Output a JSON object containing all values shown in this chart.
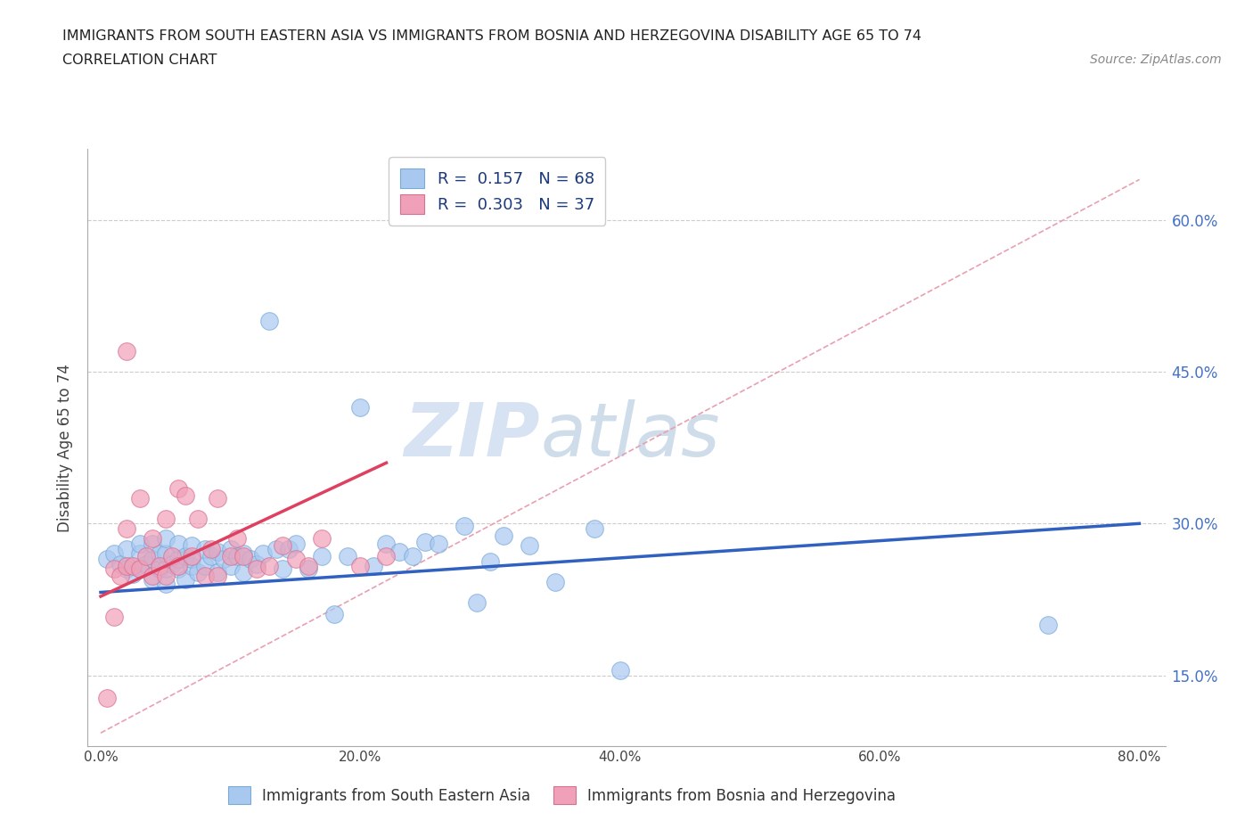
{
  "title_line1": "IMMIGRANTS FROM SOUTH EASTERN ASIA VS IMMIGRANTS FROM BOSNIA AND HERZEGOVINA DISABILITY AGE 65 TO 74",
  "title_line2": "CORRELATION CHART",
  "source_text": "Source: ZipAtlas.com",
  "ylabel": "Disability Age 65 to 74",
  "xlim": [
    -0.01,
    0.82
  ],
  "ylim": [
    0.08,
    0.67
  ],
  "yticks": [
    0.15,
    0.3,
    0.45,
    0.6
  ],
  "ytick_labels": [
    "15.0%",
    "30.0%",
    "45.0%",
    "60.0%"
  ],
  "xticks": [
    0.0,
    0.2,
    0.4,
    0.6,
    0.8
  ],
  "xtick_labels": [
    "0.0%",
    "20.0%",
    "40.0%",
    "60.0%",
    "80.0%"
  ],
  "legend_R1": "0.157",
  "legend_N1": "68",
  "legend_R2": "0.303",
  "legend_N2": "37",
  "color_blue": "#A8C8F0",
  "color_pink": "#F0A0B8",
  "color_blue_line": "#3060C0",
  "color_pink_line": "#E04060",
  "color_dashed": "#E8A0B0",
  "watermark_text": "ZIP",
  "watermark_text2": "atlas",
  "blue_scatter_x": [
    0.005,
    0.01,
    0.015,
    0.02,
    0.02,
    0.025,
    0.03,
    0.03,
    0.03,
    0.035,
    0.04,
    0.04,
    0.04,
    0.045,
    0.045,
    0.05,
    0.05,
    0.05,
    0.05,
    0.055,
    0.06,
    0.06,
    0.06,
    0.065,
    0.065,
    0.07,
    0.07,
    0.07,
    0.075,
    0.08,
    0.08,
    0.085,
    0.09,
    0.09,
    0.095,
    0.1,
    0.1,
    0.105,
    0.11,
    0.11,
    0.115,
    0.12,
    0.125,
    0.13,
    0.135,
    0.14,
    0.145,
    0.15,
    0.16,
    0.17,
    0.18,
    0.19,
    0.2,
    0.21,
    0.22,
    0.23,
    0.24,
    0.25,
    0.26,
    0.28,
    0.29,
    0.3,
    0.31,
    0.33,
    0.35,
    0.38,
    0.4,
    0.73
  ],
  "blue_scatter_y": [
    0.265,
    0.27,
    0.26,
    0.255,
    0.275,
    0.25,
    0.255,
    0.27,
    0.28,
    0.26,
    0.245,
    0.265,
    0.28,
    0.255,
    0.27,
    0.24,
    0.255,
    0.27,
    0.285,
    0.26,
    0.255,
    0.265,
    0.28,
    0.245,
    0.268,
    0.258,
    0.265,
    0.278,
    0.252,
    0.258,
    0.275,
    0.268,
    0.252,
    0.272,
    0.265,
    0.258,
    0.275,
    0.268,
    0.252,
    0.27,
    0.265,
    0.26,
    0.27,
    0.5,
    0.275,
    0.255,
    0.275,
    0.28,
    0.255,
    0.268,
    0.21,
    0.268,
    0.415,
    0.258,
    0.28,
    0.272,
    0.268,
    0.282,
    0.28,
    0.298,
    0.222,
    0.262,
    0.288,
    0.278,
    0.242,
    0.295,
    0.155,
    0.2
  ],
  "pink_scatter_x": [
    0.005,
    0.01,
    0.01,
    0.015,
    0.02,
    0.02,
    0.02,
    0.025,
    0.03,
    0.03,
    0.035,
    0.04,
    0.04,
    0.045,
    0.05,
    0.05,
    0.055,
    0.06,
    0.06,
    0.065,
    0.07,
    0.075,
    0.08,
    0.085,
    0.09,
    0.09,
    0.1,
    0.105,
    0.11,
    0.12,
    0.13,
    0.14,
    0.15,
    0.16,
    0.17,
    0.2,
    0.22
  ],
  "pink_scatter_y": [
    0.128,
    0.208,
    0.255,
    0.248,
    0.258,
    0.295,
    0.47,
    0.258,
    0.255,
    0.325,
    0.268,
    0.248,
    0.285,
    0.258,
    0.248,
    0.305,
    0.268,
    0.258,
    0.335,
    0.328,
    0.268,
    0.305,
    0.248,
    0.275,
    0.248,
    0.325,
    0.268,
    0.285,
    0.268,
    0.255,
    0.258,
    0.278,
    0.265,
    0.258,
    0.285,
    0.258,
    0.268
  ],
  "blue_trend_x": [
    0.0,
    0.8
  ],
  "blue_trend_y": [
    0.232,
    0.3
  ],
  "pink_trend_x": [
    0.0,
    0.22
  ],
  "pink_trend_y": [
    0.228,
    0.36
  ],
  "ref_line_x": [
    0.0,
    0.8
  ],
  "ref_line_y": [
    0.093,
    0.64
  ]
}
